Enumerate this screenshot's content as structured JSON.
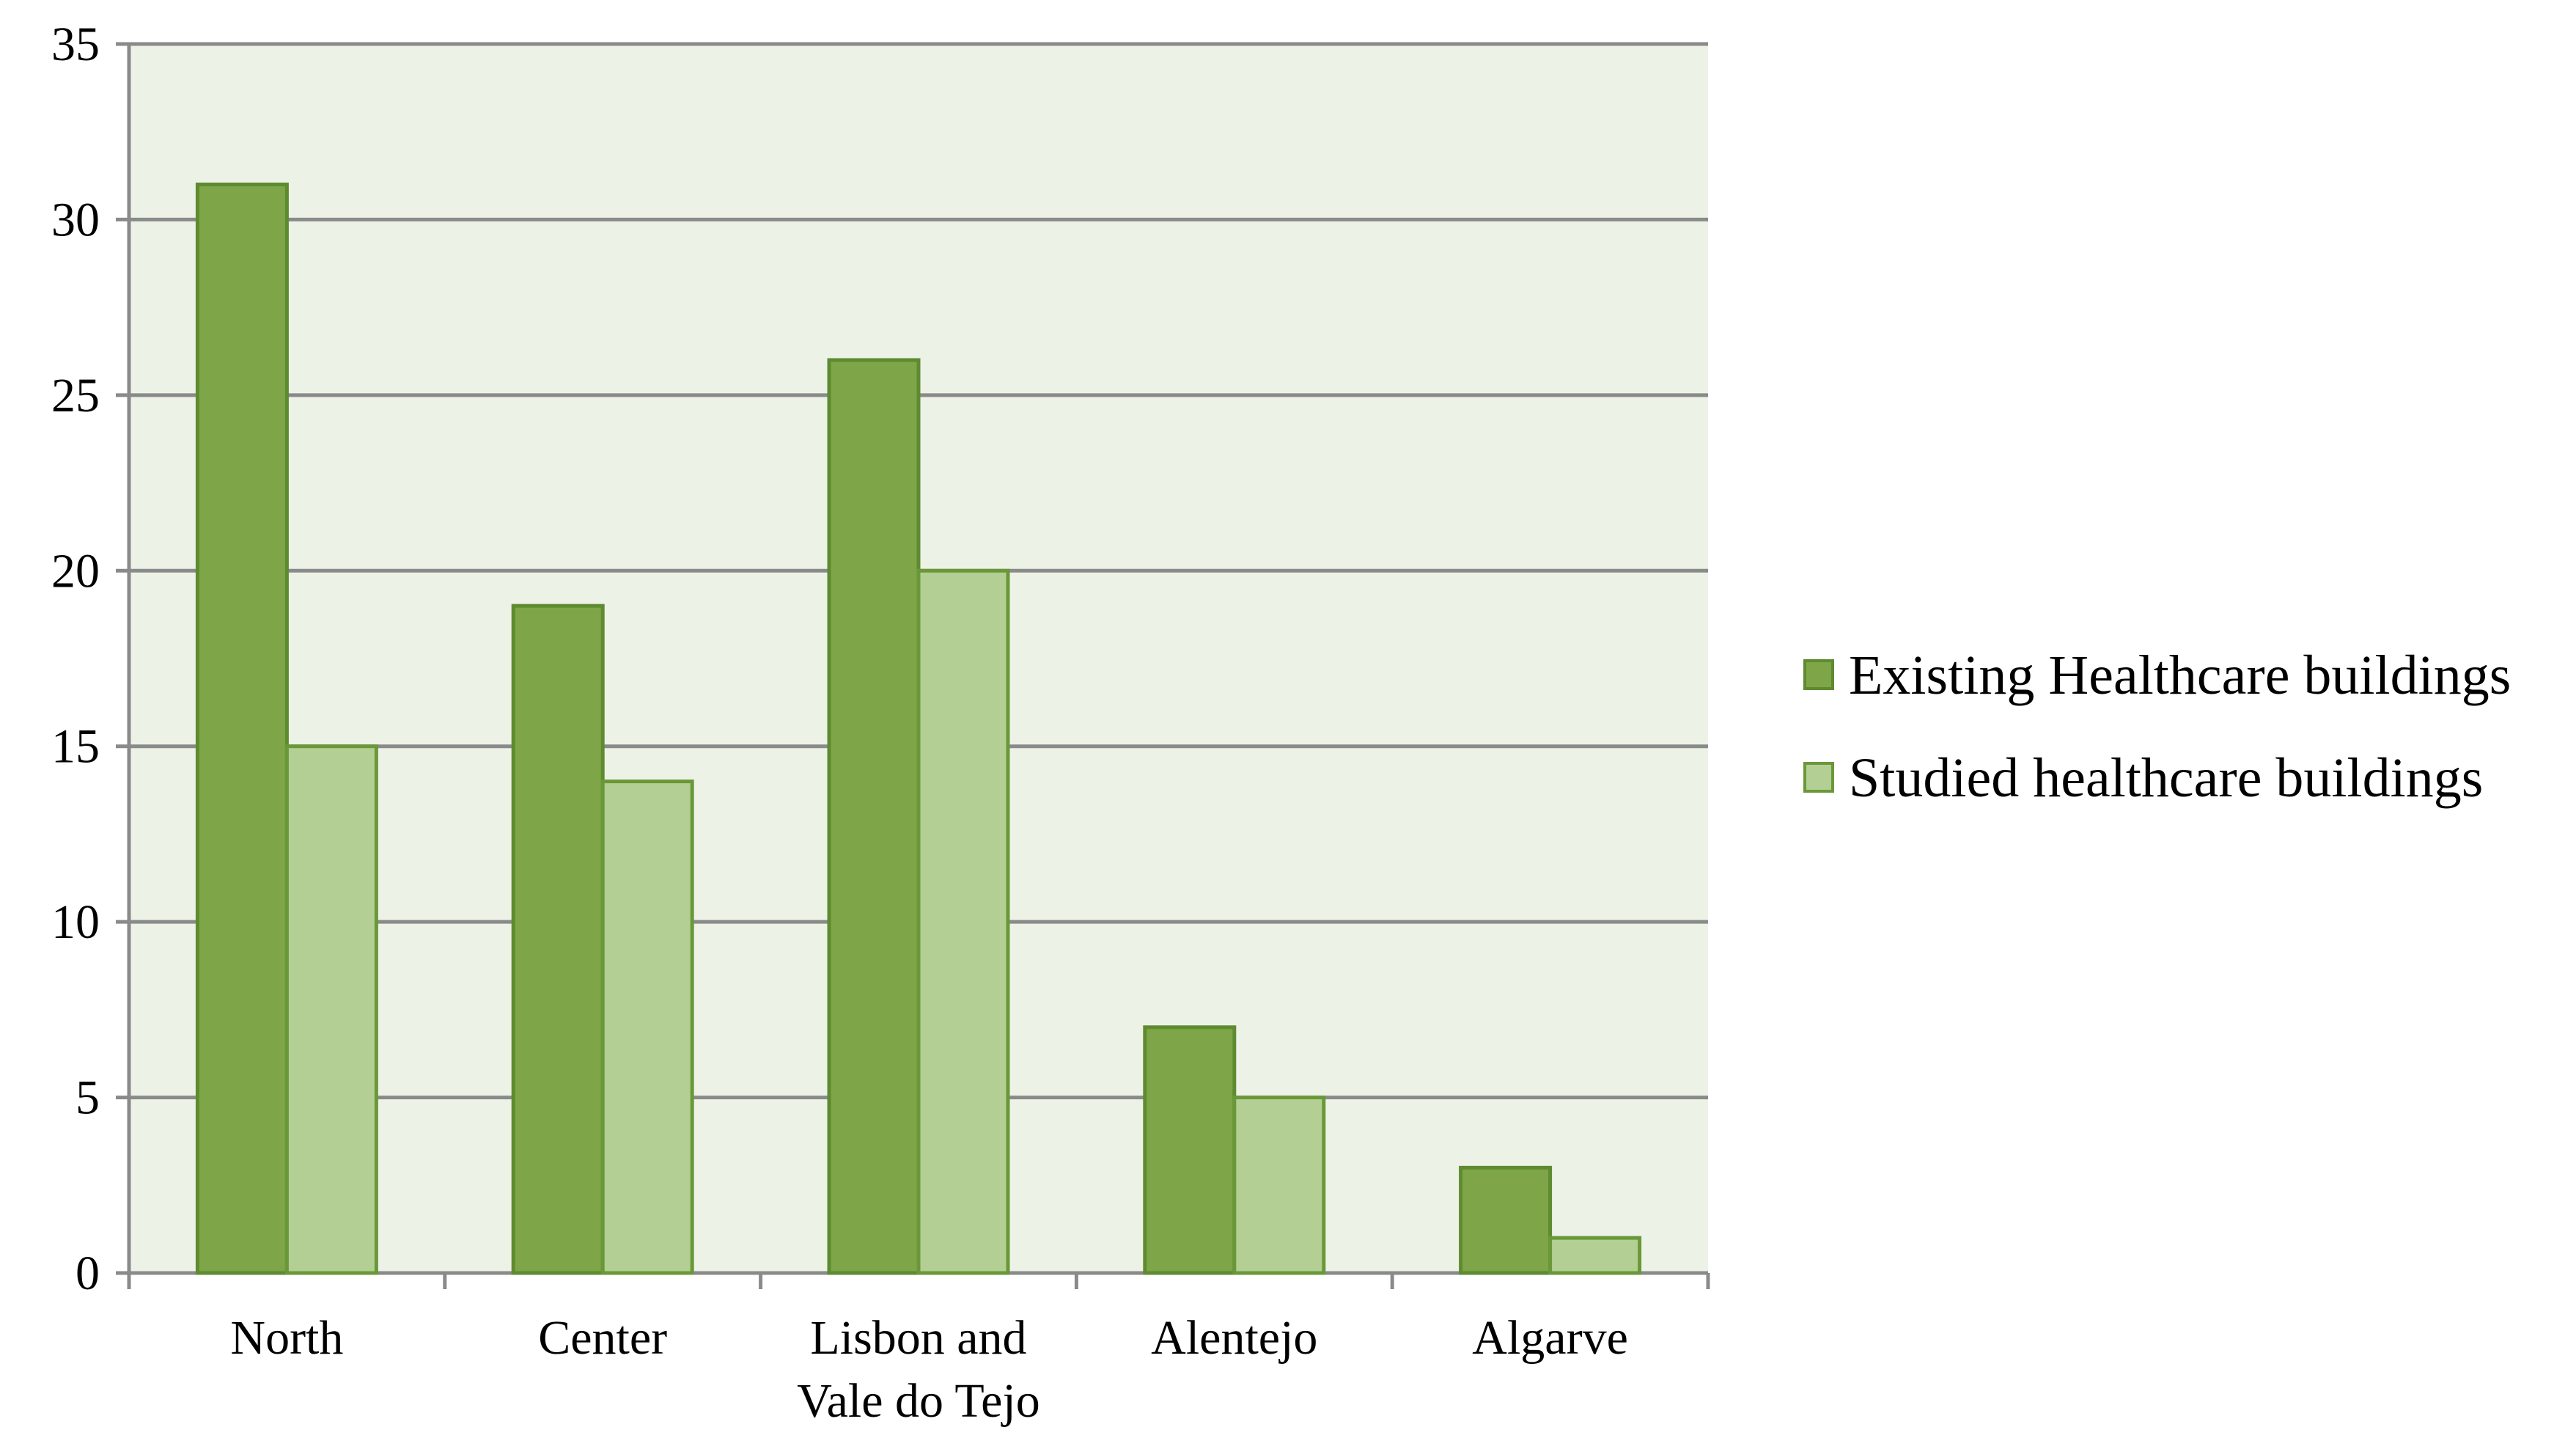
{
  "chart_data": {
    "type": "bar",
    "categories": [
      [
        "North"
      ],
      [
        "Center"
      ],
      [
        "Lisbon and",
        "Vale do Tejo"
      ],
      [
        "Alentejo"
      ],
      [
        "Algarve"
      ]
    ],
    "series": [
      {
        "name": "Existing Healthcare buildings",
        "values": [
          31,
          19,
          26,
          7,
          3
        ],
        "color": "#7ea648",
        "stroke": "#5e8a30"
      },
      {
        "name": "Studied healthcare buildings",
        "values": [
          15,
          14,
          20,
          5,
          1
        ],
        "color": "#b3cf94",
        "stroke": "#6a9838"
      }
    ],
    "ylim": [
      0,
      35
    ],
    "yticks": [
      0,
      5,
      10,
      15,
      20,
      25,
      30,
      35
    ],
    "grid": true,
    "plot_background": "#edf2e7",
    "legend_position": "right"
  }
}
